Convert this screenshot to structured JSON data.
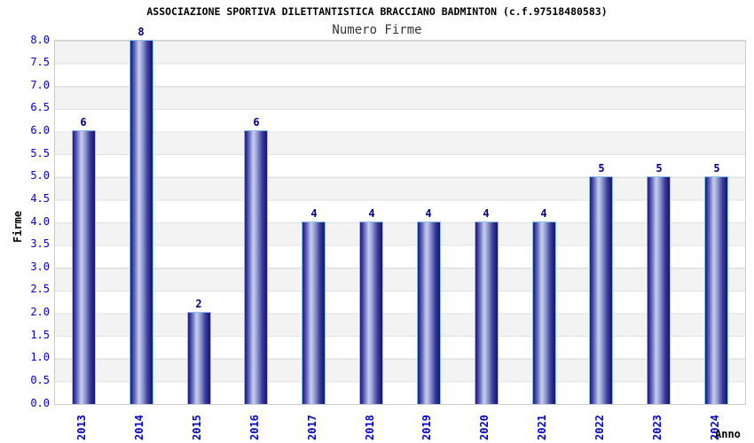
{
  "title": "ASSOCIAZIONE SPORTIVA DILETTANTISTICA BRACCIANO BADMINTON (c.f.97518480583)",
  "subtitle": "Numero Firme",
  "chart_data": {
    "type": "bar",
    "title": "Numero Firme",
    "categories": [
      "2013",
      "2014",
      "2015",
      "2016",
      "2017",
      "2018",
      "2019",
      "2020",
      "2021",
      "2022",
      "2023",
      "2024"
    ],
    "values": [
      6,
      8,
      2,
      6,
      4,
      4,
      4,
      4,
      4,
      5,
      5,
      5
    ],
    "xlabel": "Anno",
    "ylabel": "Firme",
    "ylim": [
      0,
      8
    ],
    "ytick_step": 0.5,
    "ytick_labels": [
      "0.0",
      "0.5",
      "1.0",
      "1.5",
      "2.0",
      "2.5",
      "3.0",
      "3.5",
      "4.0",
      "4.5",
      "5.0",
      "5.5",
      "6.0",
      "6.5",
      "7.0",
      "7.5",
      "8.0"
    ],
    "grid": true,
    "legend_position": "none",
    "band_colors": [
      "#ffffff",
      "#f3f3f3"
    ]
  },
  "colors": {
    "bar_dark": "#1e1e7e",
    "bar_highlight": "#c8cdee",
    "bar_outline": "#8cc0ea",
    "axis_tick_text": "#0000cc",
    "value_label_text": "#00008b",
    "gridline": "#e0e0e0",
    "plot_border": "#cccccc",
    "band_gray": "#f3f3f3",
    "title_text": "#000000",
    "subtitle_text": "#333333"
  }
}
